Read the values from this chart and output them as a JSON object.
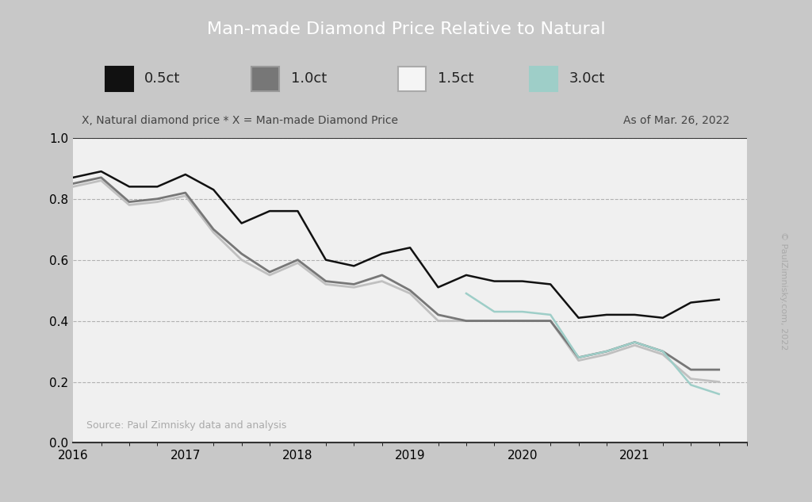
{
  "title": "Man-made Diamond Price Relative to Natural",
  "subtitle_left": "X, Natural diamond price * X = Man-made Diamond Price",
  "subtitle_right": "As of Mar. 26, 2022",
  "source": "Source: Paul Zimnisky data and analysis",
  "watermark": "© PaulZimnisky.com, 2022",
  "ylim": [
    0.0,
    1.0
  ],
  "yticks": [
    0.0,
    0.2,
    0.4,
    0.6,
    0.8,
    1.0
  ],
  "xlabel_years": [
    "2016",
    "2017",
    "2018",
    "2019",
    "2020",
    "2021"
  ],
  "series": {
    "0.5ct": {
      "color": "#111111",
      "linewidth": 1.8,
      "label": "0.5ct",
      "x": [
        2016.0,
        2016.25,
        2016.5,
        2016.75,
        2017.0,
        2017.25,
        2017.5,
        2017.75,
        2018.0,
        2018.25,
        2018.5,
        2018.75,
        2019.0,
        2019.25,
        2019.5,
        2019.75,
        2020.0,
        2020.25,
        2020.5,
        2020.75,
        2021.0,
        2021.25,
        2021.5,
        2021.75
      ],
      "y": [
        0.87,
        0.89,
        0.84,
        0.84,
        0.88,
        0.83,
        0.72,
        0.76,
        0.76,
        0.6,
        0.58,
        0.62,
        0.64,
        0.51,
        0.55,
        0.53,
        0.53,
        0.52,
        0.41,
        0.42,
        0.42,
        0.41,
        0.46,
        0.47
      ]
    },
    "1.0ct": {
      "color": "#777777",
      "linewidth": 2.0,
      "label": "1.0ct",
      "x": [
        2016.0,
        2016.25,
        2016.5,
        2016.75,
        2017.0,
        2017.25,
        2017.5,
        2017.75,
        2018.0,
        2018.25,
        2018.5,
        2018.75,
        2019.0,
        2019.25,
        2019.5,
        2019.75,
        2020.0,
        2020.25,
        2020.5,
        2020.75,
        2021.0,
        2021.25,
        2021.5,
        2021.75
      ],
      "y": [
        0.85,
        0.87,
        0.79,
        0.8,
        0.82,
        0.7,
        0.62,
        0.56,
        0.6,
        0.53,
        0.52,
        0.55,
        0.5,
        0.42,
        0.4,
        0.4,
        0.4,
        0.4,
        0.28,
        0.3,
        0.33,
        0.3,
        0.24,
        0.24
      ]
    },
    "1.5ct": {
      "color": "#c0c0c0",
      "linewidth": 2.0,
      "label": "1.5ct",
      "x": [
        2016.0,
        2016.25,
        2016.5,
        2016.75,
        2017.0,
        2017.25,
        2017.5,
        2017.75,
        2018.0,
        2018.25,
        2018.5,
        2018.75,
        2019.0,
        2019.25,
        2019.5,
        2019.75,
        2020.0,
        2020.25,
        2020.5,
        2020.75,
        2021.0,
        2021.25,
        2021.5,
        2021.75
      ],
      "y": [
        0.84,
        0.86,
        0.78,
        0.79,
        0.81,
        0.69,
        0.6,
        0.55,
        0.59,
        0.52,
        0.51,
        0.53,
        0.49,
        0.4,
        0.4,
        0.4,
        0.4,
        0.4,
        0.27,
        0.29,
        0.32,
        0.29,
        0.21,
        0.2
      ]
    },
    "3.0ct": {
      "color": "#9ecec8",
      "linewidth": 1.8,
      "label": "3.0ct",
      "x": [
        2019.5,
        2019.75,
        2020.0,
        2020.25,
        2020.5,
        2020.75,
        2021.0,
        2021.25,
        2021.5,
        2021.75
      ],
      "y": [
        0.49,
        0.43,
        0.43,
        0.42,
        0.28,
        0.3,
        0.33,
        0.3,
        0.19,
        0.16
      ]
    }
  },
  "title_bg_color": "#595959",
  "title_text_color": "#ffffff",
  "legend_bg_color": "#d8d8d8",
  "plot_bg_color": "#f0f0f0",
  "card_bg_color": "#f5f5f5",
  "outer_bg_color": "#c8c8c8",
  "grid_color": "#aaaaaa",
  "title_fontsize": 16,
  "legend_fontsize": 13,
  "axis_fontsize": 11,
  "subtitle_fontsize": 10
}
